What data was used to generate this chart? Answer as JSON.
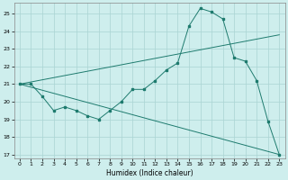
{
  "xlabel": "Humidex (Indice chaleur)",
  "bg_color": "#ceeeed",
  "grid_color": "#aad4d3",
  "line_color": "#1e7b6e",
  "xlim": [
    -0.5,
    23.5
  ],
  "ylim": [
    16.8,
    25.6
  ],
  "xticks": [
    0,
    1,
    2,
    3,
    4,
    5,
    6,
    7,
    8,
    9,
    10,
    11,
    12,
    13,
    14,
    15,
    16,
    17,
    18,
    19,
    20,
    21,
    22,
    23
  ],
  "yticks": [
    17,
    18,
    19,
    20,
    21,
    22,
    23,
    24,
    25
  ],
  "line1_x": [
    0,
    1,
    2,
    3,
    4,
    5,
    6,
    7,
    8,
    9,
    10,
    11,
    12,
    13,
    14,
    15,
    16,
    17,
    18,
    19,
    20,
    21,
    22,
    23
  ],
  "line1_y": [
    21.0,
    21.0,
    20.3,
    19.5,
    19.7,
    19.5,
    19.2,
    19.0,
    19.5,
    20.0,
    20.7,
    20.7,
    21.2,
    21.8,
    22.2,
    24.3,
    25.3,
    25.1,
    24.7,
    22.5,
    22.3,
    21.2,
    18.9,
    17.0
  ],
  "line2_x": [
    0,
    23
  ],
  "line2_y": [
    21.0,
    23.8
  ],
  "line3_x": [
    0,
    23
  ],
  "line3_y": [
    21.0,
    17.0
  ]
}
